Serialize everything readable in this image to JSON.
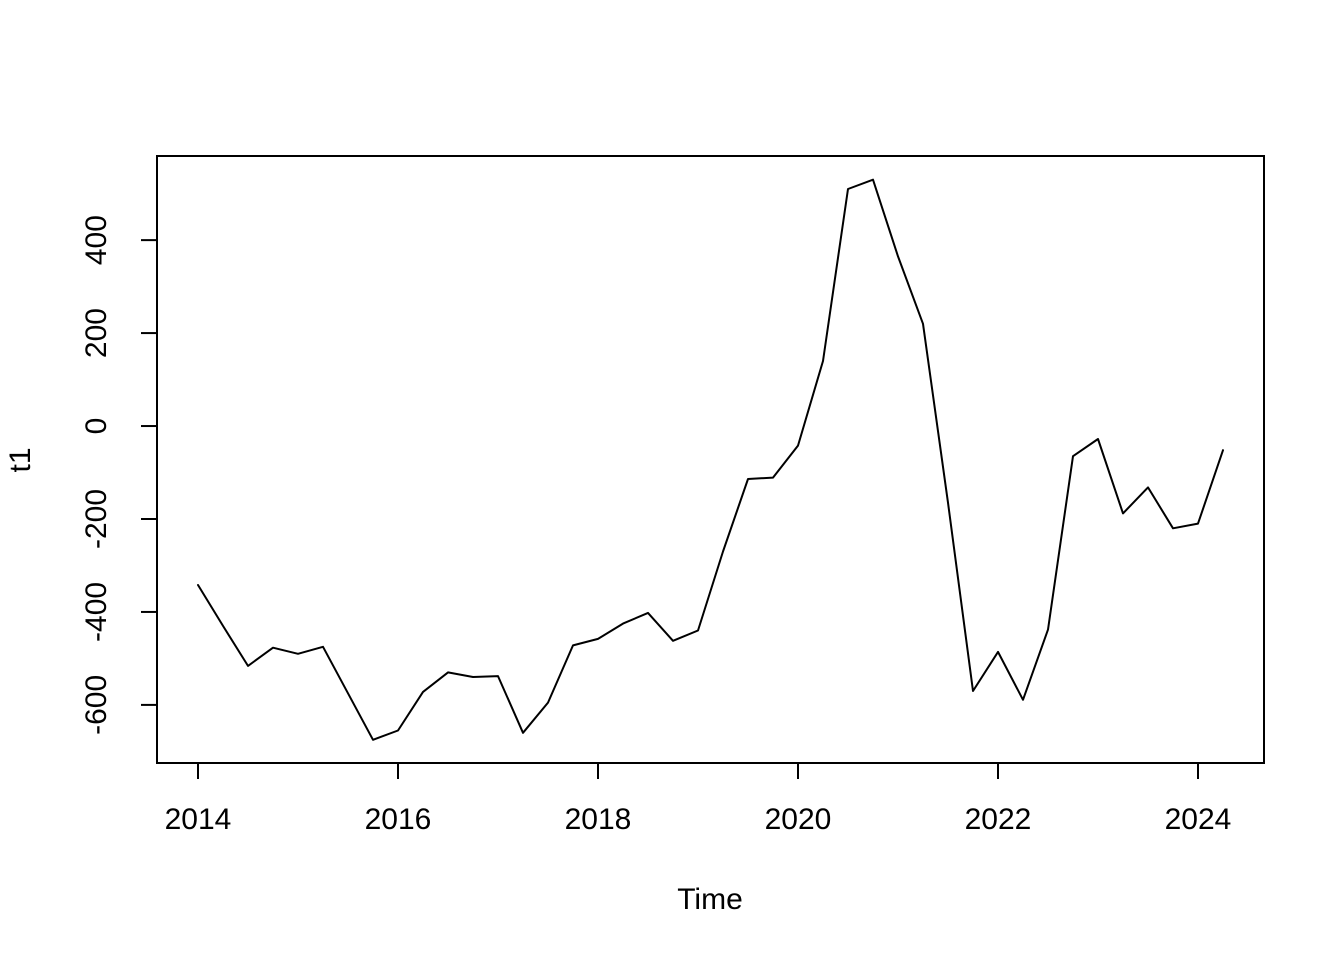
{
  "figure": {
    "background": "#ffffff",
    "foreground": "#000000"
  },
  "chart_data": {
    "type": "line",
    "title": "",
    "xlabel": "Time",
    "ylabel": "t1",
    "series_name": "t1",
    "frequency": "quarterly",
    "x": [
      2014.0,
      2014.25,
      2014.5,
      2014.75,
      2015.0,
      2015.25,
      2015.5,
      2015.75,
      2016.0,
      2016.25,
      2016.5,
      2016.75,
      2017.0,
      2017.25,
      2017.5,
      2017.75,
      2018.0,
      2018.25,
      2018.5,
      2018.75,
      2019.0,
      2019.25,
      2019.5,
      2019.75,
      2020.0,
      2020.25,
      2020.5,
      2020.75,
      2021.0,
      2021.25,
      2021.5,
      2021.75,
      2022.0,
      2022.25,
      2022.5,
      2022.75,
      2023.0,
      2023.25,
      2023.5,
      2023.75,
      2024.0,
      2024.25
    ],
    "values": [
      -342,
      -430,
      -516,
      -477,
      -490,
      -475,
      -575,
      -675,
      -655,
      -572,
      -530,
      -540,
      -538,
      -660,
      -595,
      -472,
      -458,
      -425,
      -402,
      -462,
      -440,
      -270,
      -114,
      -111,
      -42,
      140,
      510,
      530,
      365,
      220,
      -165,
      -570,
      -486,
      -589,
      -438,
      -65,
      -28,
      -188,
      -132,
      -220,
      -210,
      -52
    ],
    "xticks": [
      2014,
      2016,
      2018,
      2020,
      2022,
      2024
    ],
    "yticks": [
      -600,
      -400,
      -200,
      0,
      200,
      400
    ],
    "xlim": [
      2013.59,
      2024.66
    ],
    "ylim": [
      -725,
      581
    ],
    "grid": false,
    "legend_position": "none",
    "line_color": "#000000",
    "background": "#ffffff"
  }
}
